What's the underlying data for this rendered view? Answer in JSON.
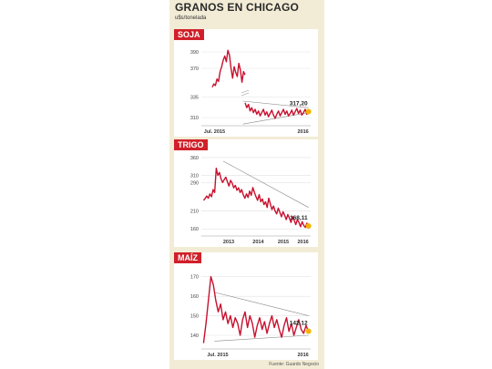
{
  "header": {
    "title": "GRANOS EN CHICAGO",
    "unit": "u$s/tonelada"
  },
  "source": "Fuente: Guardo Negocio",
  "chart_data": [
    {
      "type": "line",
      "name": "soja",
      "tag": "SOJA",
      "title": "",
      "xlabel": "",
      "ylabel": "",
      "yticks": [
        390,
        370,
        335,
        310
      ],
      "ylim": [
        300,
        400
      ],
      "xticks": [
        {
          "label": "Jul. 2015",
          "x": 0.12
        },
        {
          "label": "2016",
          "x": 0.93
        }
      ],
      "last_value_label": "317,20",
      "y_break": true,
      "series": [
        {
          "segment": "before_break",
          "values": [
            347,
            351,
            349,
            357,
            354,
            366,
            372,
            380,
            385,
            378,
            392,
            386,
            370,
            358,
            372,
            365,
            360,
            376,
            368,
            353,
            366,
            362
          ]
        },
        {
          "segment": "after_break",
          "values": [
            328,
            322,
            326,
            318,
            322,
            316,
            320,
            314,
            318,
            312,
            316,
            320,
            313,
            317,
            311,
            315,
            319,
            313,
            309,
            314,
            318,
            312,
            316,
            320,
            314,
            318,
            312,
            315,
            319,
            313,
            317,
            321,
            315,
            319,
            313,
            316,
            320,
            314,
            317.2
          ]
        }
      ],
      "trendlines": [
        {
          "from": [
            0.38,
            330
          ],
          "to": [
            0.98,
            322
          ]
        },
        {
          "from": [
            0.38,
            302
          ],
          "to": [
            0.98,
            316
          ]
        }
      ],
      "colors": {
        "line": "#c8102e",
        "marker": "#f2b300"
      }
    },
    {
      "type": "line",
      "name": "trigo",
      "tag": "TRIGO",
      "title": "",
      "xlabel": "",
      "ylabel": "",
      "yticks": [
        360,
        310,
        290,
        210,
        160
      ],
      "ylim": [
        140,
        370
      ],
      "xticks": [
        {
          "label": "2013",
          "x": 0.25
        },
        {
          "label": "2014",
          "x": 0.52
        },
        {
          "label": "2015",
          "x": 0.75
        },
        {
          "label": "2016",
          "x": 0.93
        }
      ],
      "last_value_label": "168,11",
      "series": [
        {
          "segment": "main",
          "values": [
            240,
            245,
            252,
            246,
            258,
            250,
            270,
            262,
            330,
            310,
            318,
            300,
            290,
            298,
            305,
            292,
            280,
            296,
            288,
            275,
            282,
            268,
            275,
            262,
            270,
            255,
            246,
            258,
            248,
            266,
            254,
            276,
            262,
            250,
            240,
            256,
            236,
            244,
            228,
            236,
            220,
            246,
            230,
            214,
            224,
            210,
            202,
            218,
            206,
            194,
            208,
            198,
            186,
            200,
            190,
            178,
            194,
            184,
            172,
            186,
            178,
            166,
            180,
            170,
            164,
            176,
            168.11
          ]
        }
      ],
      "trendlines": [
        {
          "from": [
            0.2,
            350
          ],
          "to": [
            0.98,
            220
          ]
        }
      ],
      "colors": {
        "line": "#c8102e",
        "marker": "#f2b300"
      }
    },
    {
      "type": "line",
      "name": "maiz",
      "tag": "MAÍZ",
      "title": "",
      "xlabel": "",
      "ylabel": "",
      "yticks": [
        170,
        160,
        150,
        140
      ],
      "ylim": [
        133,
        175
      ],
      "xticks": [
        {
          "label": "Jul. 2015",
          "x": 0.15
        },
        {
          "label": "2016",
          "x": 0.93
        }
      ],
      "last_value_label": "142,12",
      "series": [
        {
          "segment": "main",
          "values": [
            136,
            146,
            158,
            170,
            166,
            158,
            152,
            156,
            148,
            152,
            146,
            150,
            144,
            149,
            146,
            140,
            148,
            152,
            144,
            150,
            146,
            139,
            145,
            149,
            143,
            147,
            141,
            146,
            150,
            144,
            148,
            143,
            139,
            145,
            149,
            142,
            146,
            140,
            144,
            148,
            143,
            141,
            145,
            142.12
          ]
        }
      ],
      "trendlines": [
        {
          "from": [
            0.12,
            162
          ],
          "to": [
            0.98,
            150
          ]
        },
        {
          "from": [
            0.12,
            137
          ],
          "to": [
            0.98,
            140
          ]
        }
      ],
      "colors": {
        "line": "#c8102e",
        "marker": "#f2b300"
      }
    }
  ]
}
